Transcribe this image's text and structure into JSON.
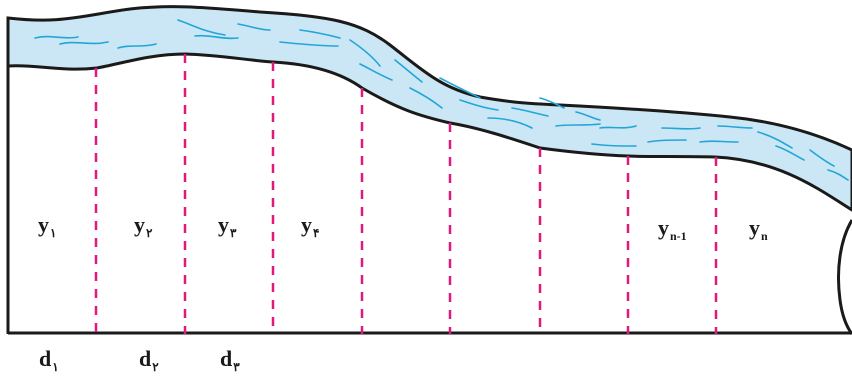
{
  "labels": {
    "y": [
      {
        "base": "y",
        "sub": "۱"
      },
      {
        "base": "y",
        "sub": "۲"
      },
      {
        "base": "y",
        "sub": "۳"
      },
      {
        "base": "y",
        "sub": "۴"
      },
      {
        "base": "y",
        "sub": "n-1"
      },
      {
        "base": "y",
        "sub": "n"
      }
    ],
    "d": [
      {
        "base": "d",
        "sub": "۱"
      },
      {
        "base": "d",
        "sub": "۲"
      },
      {
        "base": "d",
        "sub": "۳"
      }
    ]
  },
  "colors": {
    "river_fill": "#cbe6f4",
    "river_outline": "#1a1a1a",
    "ripple": "#22a6d8",
    "divider": "#e0197d",
    "ground_line": "#1a1a1a"
  }
}
